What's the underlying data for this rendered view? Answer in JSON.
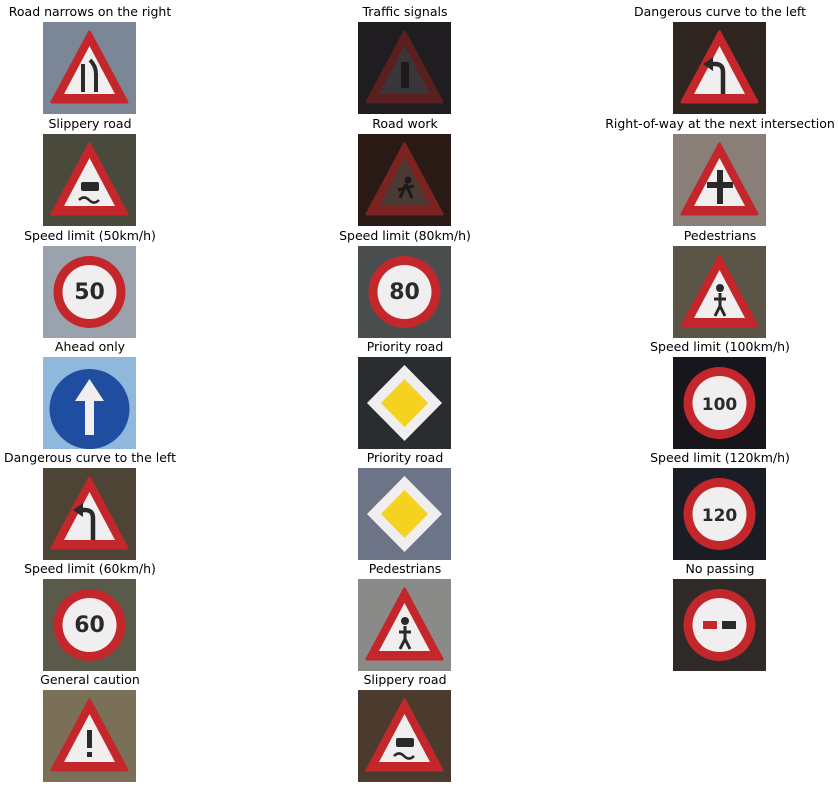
{
  "figure": {
    "panels": [
      {
        "title": "Road narrows on the right",
        "icon": "road-narrows-right-sign",
        "bg": "#7b8796"
      },
      {
        "title": "Traffic signals",
        "icon": "traffic-signals-sign",
        "bg": "#1f1d1f"
      },
      {
        "title": "Dangerous curve to the left",
        "icon": "dangerous-curve-left-sign",
        "bg": "#2e2520"
      },
      {
        "title": "Slippery road",
        "icon": "slippery-road-sign",
        "bg": "#4a4a3c"
      },
      {
        "title": "Road work",
        "icon": "road-work-sign",
        "bg": "#2a1a16"
      },
      {
        "title": "Right-of-way at the next intersection",
        "icon": "right-of-way-sign",
        "bg": "#8a7e78"
      },
      {
        "title": "Speed limit (50km/h)",
        "icon": "speed-limit-50-sign",
        "bg": "#9aa2ae",
        "text": "50"
      },
      {
        "title": "Speed limit (80km/h)",
        "icon": "speed-limit-80-sign",
        "bg": "#4a4d4e",
        "text": "80"
      },
      {
        "title": "Pedestrians",
        "icon": "pedestrians-sign",
        "bg": "#5a5546"
      },
      {
        "title": "Ahead only",
        "icon": "ahead-only-sign",
        "bg": "#8fb8dc"
      },
      {
        "title": "Priority road",
        "icon": "priority-road-sign",
        "bg": "#2a2d30"
      },
      {
        "title": "Speed limit (100km/h)",
        "icon": "speed-limit-100-sign",
        "bg": "#16161c",
        "text": "100"
      },
      {
        "title": "Dangerous curve to the left",
        "icon": "dangerous-curve-left-sign",
        "bg": "#4e4436"
      },
      {
        "title": "Priority road",
        "icon": "priority-road-sign",
        "bg": "#6d7488"
      },
      {
        "title": "Speed limit (120km/h)",
        "icon": "speed-limit-120-sign",
        "bg": "#1b1d25",
        "text": "120"
      },
      {
        "title": "Speed limit (60km/h)",
        "icon": "speed-limit-60-sign",
        "bg": "#5a5a4a",
        "text": "60"
      },
      {
        "title": "Pedestrians",
        "icon": "pedestrians-sign",
        "bg": "#8a8a88"
      },
      {
        "title": "No passing",
        "icon": "no-passing-sign",
        "bg": "#2f2a28"
      },
      {
        "title": "General caution",
        "icon": "general-caution-sign",
        "bg": "#7a7058"
      },
      {
        "title": "Slippery road",
        "icon": "slippery-road-sign",
        "bg": "#4b3a2e"
      }
    ],
    "colors": {
      "sign_red": "#c4272b",
      "sign_white": "#f0eeee",
      "sign_blue": "#1f4ea0",
      "priority_yellow": "#f4d21f",
      "symbol_dark": "#2a2a2a",
      "title_text": "#000000"
    }
  }
}
